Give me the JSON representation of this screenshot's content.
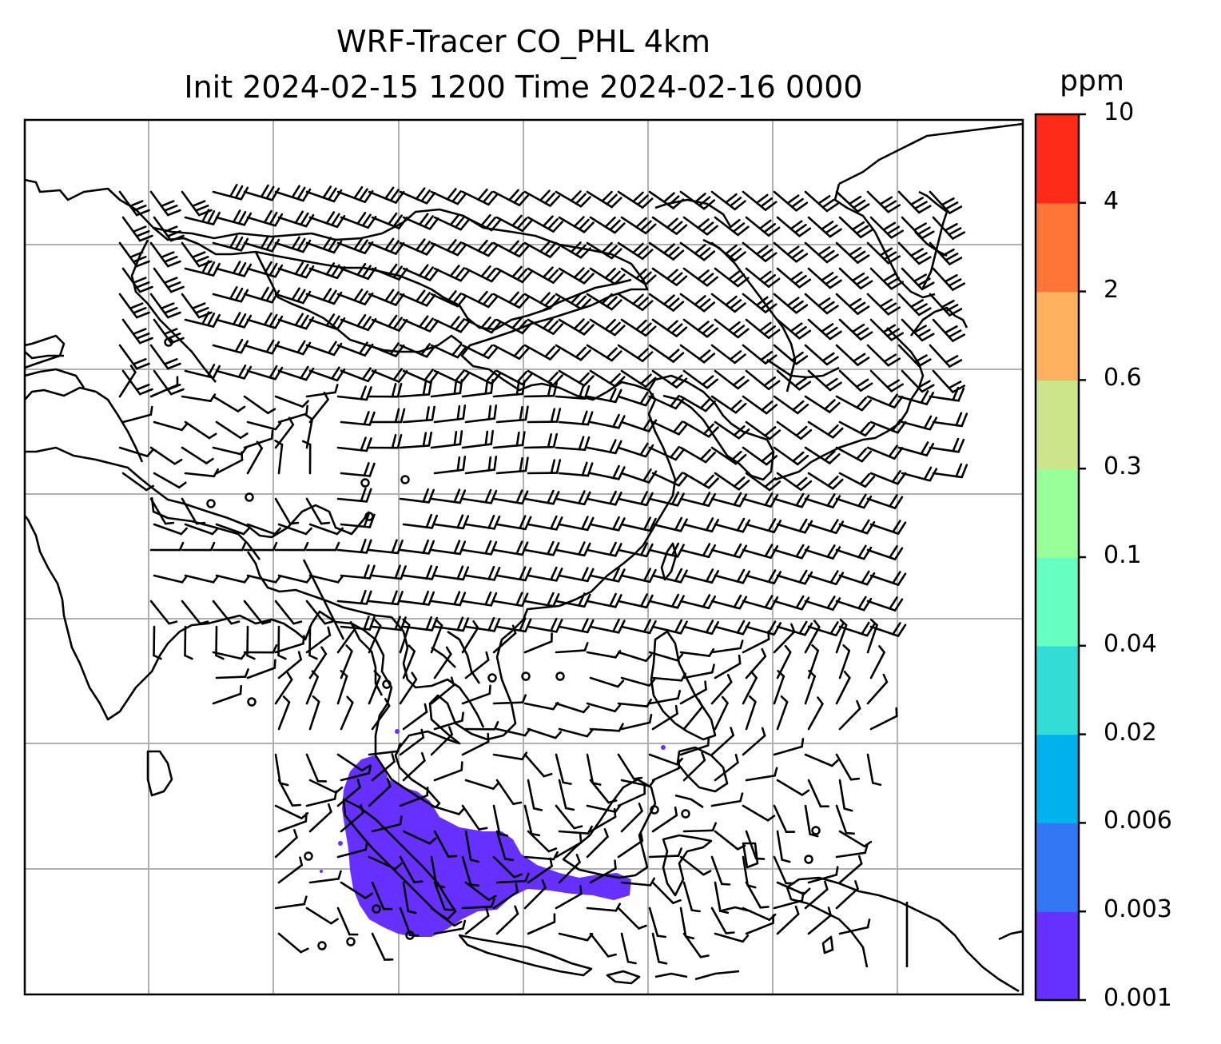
{
  "title_line1": "WRF-Tracer CO_PHL 4km",
  "title_line2": "Init 2024-02-15 1200 Time 2024-02-16 0000",
  "colorbar": {
    "unit": "ppm",
    "ticks": [
      "0.001",
      "0.003",
      "0.006",
      "0.02",
      "0.04",
      "0.1",
      "0.3",
      "0.6",
      "2",
      "4",
      "10"
    ],
    "colors": [
      "#6630ff",
      "#3377f5",
      "#00b2ec",
      "#33ddd5",
      "#66ffbf",
      "#99ff99",
      "#cce48a",
      "#ffb060",
      "#ff7538",
      "#ff2b18"
    ]
  },
  "map": {
    "gridlines": true,
    "coastline_color": "#000000",
    "plume_color": "#6630ff",
    "wind_barbs": true
  }
}
